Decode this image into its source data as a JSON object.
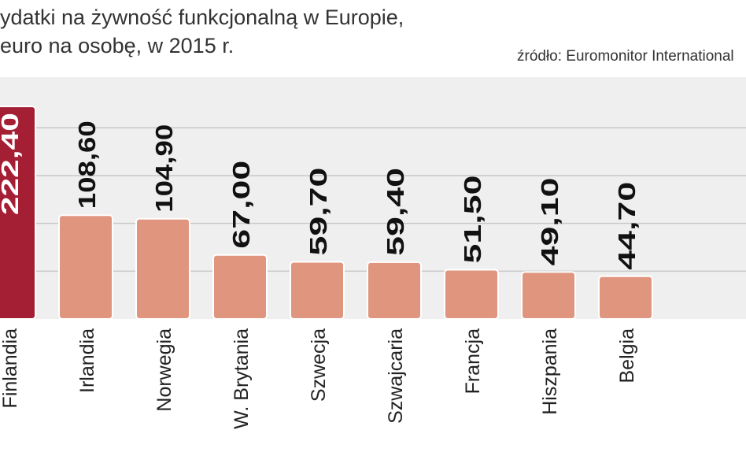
{
  "header": {
    "title_line1": "ydatki na żywność funkcjonalną w Europie,",
    "title_line2": "euro na osobę, w 2015 r.",
    "source": "źródło: Euromonitor International"
  },
  "chart_data": {
    "type": "bar",
    "orientation": "vertical",
    "categories": [
      "Finlandia",
      "Irlandia",
      "Norwegia",
      "W. Brytania",
      "Szwecja",
      "Szwajcaria",
      "Francja",
      "Hiszpania",
      "Belgia"
    ],
    "values": [
      222.4,
      108.6,
      104.9,
      67.0,
      59.7,
      59.4,
      51.5,
      49.1,
      44.7
    ],
    "value_labels": [
      "222,40",
      "108,60",
      "104,90",
      "67,00",
      "59,70",
      "59,40",
      "51,50",
      "49,10",
      "44,70"
    ],
    "title": "ydatki na żywność funkcjonalną w Europie, euro na osobę, w 2015 r.",
    "ylim": [
      0,
      253
    ],
    "gridlines": [
      50,
      100,
      150,
      200
    ],
    "grid": true,
    "colors": {
      "highlight": "#a41e34",
      "bar": "#e0957f",
      "background": "#efefef",
      "grid": "#c8c8c8"
    }
  }
}
